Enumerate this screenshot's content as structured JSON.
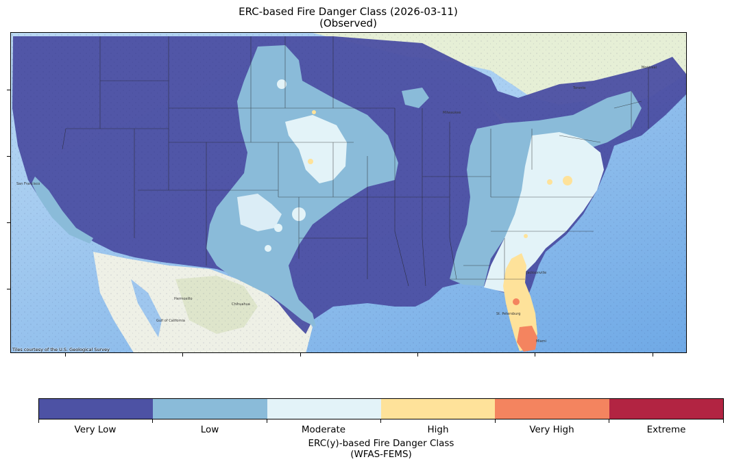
{
  "title": {
    "line1": "ERC-based Fire Danger Class (2026-03-11)",
    "line2": "(Observed)"
  },
  "map": {
    "attribution": "Tiles courtesy of the U.S. Geological Survey",
    "basemap_labels": [
      "San Francisco",
      "Hermosillo",
      "Chihuahua",
      "Gulf of California",
      "Milwaukee",
      "Toronto",
      "Jacksonville",
      "St. Petersburg",
      "Miami",
      "Montreal"
    ]
  },
  "legend": {
    "classes": [
      {
        "label": "Very Low",
        "color": "#4d52a4"
      },
      {
        "label": "Low",
        "color": "#8abbd9"
      },
      {
        "label": "Moderate",
        "color": "#e3f3f8"
      },
      {
        "label": "High",
        "color": "#fee29a"
      },
      {
        "label": "Very High",
        "color": "#f4845f"
      },
      {
        "label": "Extreme",
        "color": "#b22442"
      }
    ],
    "title_line1": "ERC(y)-based Fire Danger Class",
    "title_line2": "(WFAS-FEMS)"
  }
}
